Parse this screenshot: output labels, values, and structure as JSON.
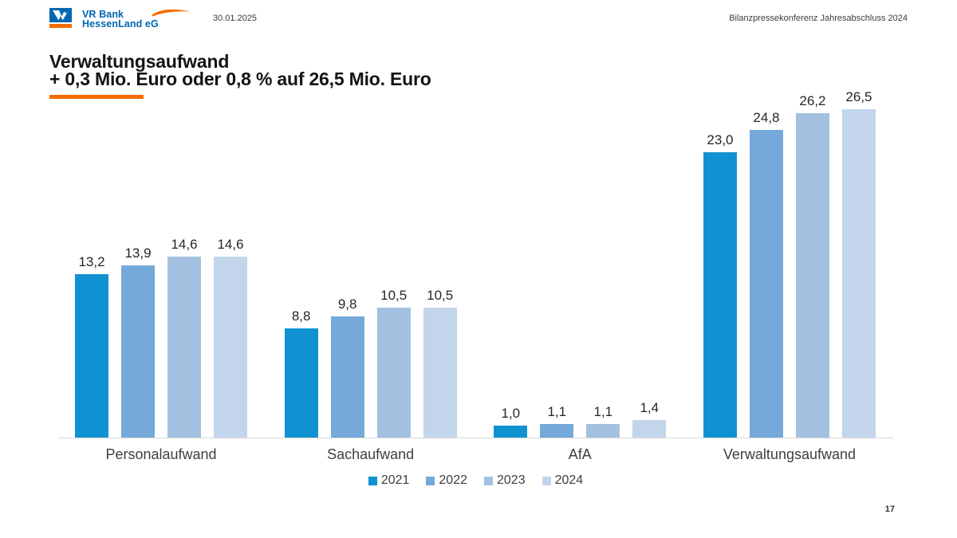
{
  "header": {
    "logo": {
      "line1": "VR Bank",
      "line2": "HessenLand eG"
    },
    "date": "30.01.2025",
    "right_text": "Bilanzpressekonferenz Jahresabschluss 2024"
  },
  "title": {
    "line1": "Verwaltungsaufwand",
    "line2": "+ 0,3 Mio. Euro oder 0,8 % auf 26,5 Mio. Euro"
  },
  "footer": {
    "page_number": "17"
  },
  "colors": {
    "logo_blue": "#0066b2",
    "accent_orange": "#f26c00",
    "axis_line": "#d9d9d9",
    "series": [
      "#1092d2",
      "#74a9da",
      "#a4c1e2",
      "#c2d5eb"
    ]
  },
  "chart_data": {
    "type": "bar",
    "title": "",
    "xlabel": "",
    "ylabel": "",
    "categories": [
      "Personalaufwand",
      "Sachaufwand",
      "AfA",
      "Verwaltungsaufwand"
    ],
    "series": [
      {
        "name": "2021",
        "color": "#1092d2",
        "values": [
          13.2,
          8.8,
          1.0,
          23.0
        ],
        "labels": [
          "13,2",
          "8,8",
          "1,0",
          "23,0"
        ]
      },
      {
        "name": "2022",
        "color": "#74a9da",
        "values": [
          13.9,
          9.8,
          1.1,
          24.8
        ],
        "labels": [
          "13,9",
          "9,8",
          "1,1",
          "24,8"
        ]
      },
      {
        "name": "2023",
        "color": "#a4c1e2",
        "values": [
          14.6,
          10.5,
          1.1,
          26.2
        ],
        "labels": [
          "14,6",
          "10,5",
          "1,1",
          "26,2"
        ]
      },
      {
        "name": "2024",
        "color": "#c2d5eb",
        "values": [
          14.6,
          10.5,
          1.4,
          26.5
        ],
        "labels": [
          "14,6",
          "10,5",
          "1,4",
          "26,5"
        ]
      }
    ],
    "ylim": [
      0,
      26.5
    ],
    "grid": false,
    "data_labels": true,
    "legend_position": "bottom"
  }
}
